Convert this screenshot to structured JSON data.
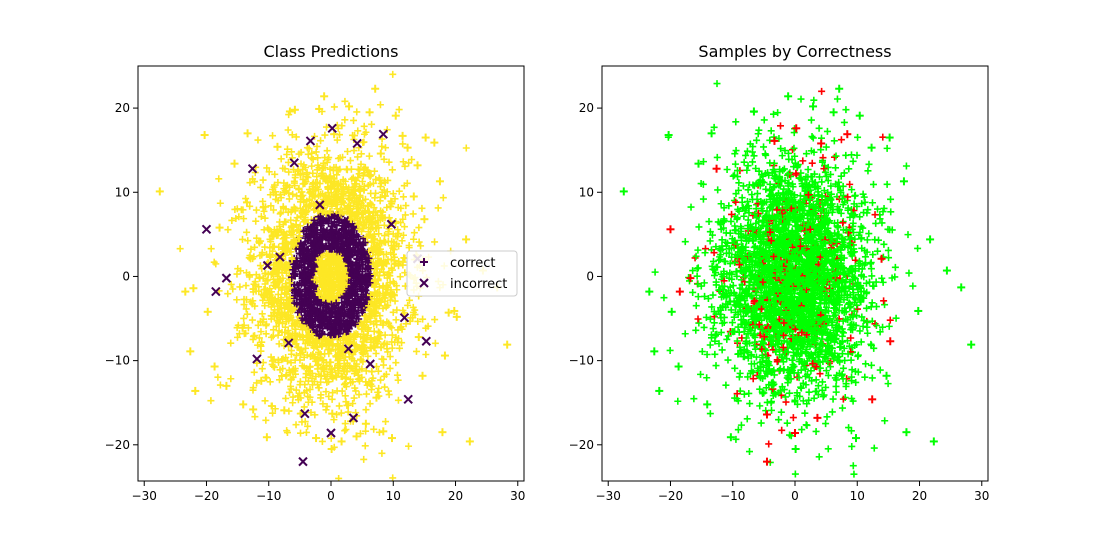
{
  "colors": {
    "yellow": "#fde725",
    "purple": "#440154",
    "green": "#00ff00",
    "red": "#ff0000",
    "frame": "#000000",
    "legend_border": "#cccccc"
  },
  "chart_data": [
    {
      "type": "scatter",
      "title": "Class Predictions",
      "xlabel": "",
      "ylabel": "",
      "xlim": [
        -31,
        31
      ],
      "ylim": [
        -24.3,
        25
      ],
      "xticks": [
        -30,
        -20,
        -10,
        0,
        10,
        20,
        30
      ],
      "yticks": [
        -20,
        -10,
        0,
        10,
        20
      ],
      "xtick_labels": [
        "−30",
        "−20",
        "−10",
        "0",
        "10",
        "20",
        "30"
      ],
      "ytick_labels": [
        "−20",
        "−10",
        "0",
        "10",
        "20"
      ],
      "grid": false,
      "legend": {
        "placement": "center-right",
        "entries": [
          {
            "label": "correct",
            "marker": "plus",
            "color": "#440154"
          },
          {
            "label": "incorrect",
            "marker": "x",
            "color": "#440154"
          }
        ]
      },
      "color_rule": "radius > 6.5 → #fde725 (yellow), otherwise #440154 (purple)",
      "series": [
        {
          "name": "correct",
          "marker": "plus",
          "points": [
            [
              -27.5,
              10.1
            ],
            [
              -20.3,
              16.8
            ],
            [
              -22.6,
              -8.9
            ],
            [
              -21.8,
              -13.6
            ],
            [
              -23.4,
              -1.8
            ],
            [
              -22.1,
              -1.4
            ],
            [
              -19.8,
              -4.2
            ],
            [
              -18.7,
              -10.7
            ],
            [
              -17.9,
              5.8
            ],
            [
              -16.8,
              -13.0
            ],
            [
              -15.5,
              13.4
            ],
            [
              -13.4,
              17.0
            ],
            [
              -14.1,
              -15.2
            ],
            [
              -12.5,
              -15.8
            ],
            [
              -11.2,
              -12.4
            ],
            [
              -10.3,
              -19.1
            ],
            [
              -6.6,
              19.6
            ],
            [
              -5.8,
              19.8
            ],
            [
              -4.9,
              12.2
            ],
            [
              -2.4,
              -19.2
            ],
            [
              -1.9,
              19.9
            ],
            [
              -1.1,
              21.4
            ],
            [
              0.1,
              -20.5
            ],
            [
              1.7,
              -19.6
            ],
            [
              2.9,
              20.2
            ],
            [
              4.1,
              -19.0
            ],
            [
              5.6,
              -17.5
            ],
            [
              6.2,
              19.5
            ],
            [
              7.1,
              22.3
            ],
            [
              8.4,
              -18.4
            ],
            [
              9.8,
              -19.2
            ],
            [
              10.4,
              19.1
            ],
            [
              11.5,
              16.7
            ],
            [
              12.3,
              15.3
            ],
            [
              13.9,
              13.2
            ],
            [
              14.7,
              -11.8
            ],
            [
              15.2,
              16.5
            ],
            [
              16.6,
              15.9
            ],
            [
              17.5,
              11.3
            ],
            [
              18.3,
              -9.4
            ],
            [
              17.9,
              -18.5
            ],
            [
              18.9,
              -4.3
            ],
            [
              19.8,
              -4.1
            ],
            [
              20.2,
              -4.8
            ],
            [
              21.7,
              4.4
            ],
            [
              22.3,
              -19.6
            ],
            [
              24.4,
              0.7
            ],
            [
              26.7,
              -1.3
            ],
            [
              28.3,
              -8.1
            ],
            [
              15.0,
              6.8
            ],
            [
              14.1,
              -7.2
            ],
            [
              13.3,
              9.5
            ],
            [
              -13.5,
              8.8
            ],
            [
              -14.2,
              -6.1
            ],
            [
              -8.6,
              15.4
            ],
            [
              -7.5,
              -15.9
            ],
            [
              8.0,
              14.6
            ],
            [
              7.3,
              -14.4
            ],
            [
              0.5,
              16.9
            ],
            [
              0.2,
              -16.3
            ]
          ]
        },
        {
          "name": "incorrect",
          "marker": "x",
          "points": [
            [
              -4.5,
              -22.0
            ],
            [
              -4.2,
              -16.3
            ],
            [
              3.6,
              -16.8
            ],
            [
              0.0,
              -18.6
            ],
            [
              -20.0,
              5.6
            ],
            [
              -18.5,
              -1.8
            ],
            [
              -16.8,
              -0.2
            ],
            [
              -12.6,
              12.8
            ],
            [
              -11.9,
              -9.8
            ],
            [
              -10.2,
              1.3
            ],
            [
              -6.8,
              -7.9
            ],
            [
              -5.9,
              13.5
            ],
            [
              -3.3,
              16.1
            ],
            [
              0.2,
              17.6
            ],
            [
              4.2,
              15.8
            ],
            [
              8.4,
              16.9
            ],
            [
              9.7,
              6.2
            ],
            [
              11.8,
              -4.9
            ],
            [
              12.4,
              -14.6
            ],
            [
              15.3,
              -7.7
            ],
            [
              13.9,
              2.1
            ],
            [
              6.3,
              -10.4
            ],
            [
              -1.8,
              8.5
            ],
            [
              2.8,
              -8.6
            ],
            [
              -8.2,
              2.3
            ]
          ]
        }
      ]
    },
    {
      "type": "scatter",
      "title": "Samples by Correctness",
      "xlabel": "",
      "ylabel": "",
      "xlim": [
        -31,
        31
      ],
      "ylim": [
        -24.3,
        25
      ],
      "xticks": [
        -30,
        -20,
        -10,
        0,
        10,
        20,
        30
      ],
      "yticks": [
        -20,
        -10,
        0,
        10,
        20
      ],
      "xtick_labels": [
        "−30",
        "−20",
        "−10",
        "0",
        "10",
        "20",
        "30"
      ],
      "ytick_labels": [
        "−20",
        "−10",
        "0",
        "10",
        "20"
      ],
      "grid": false,
      "series": [
        {
          "name": "",
          "marker": "plus",
          "color": "#00ff00",
          "points": [
            [
              -27.5,
              10.1
            ],
            [
              -20.3,
              16.8
            ],
            [
              -22.6,
              -8.9
            ],
            [
              -21.8,
              -13.6
            ],
            [
              -23.4,
              -1.8
            ],
            [
              -19.8,
              -4.2
            ],
            [
              -18.7,
              -10.7
            ],
            [
              -15.5,
              13.4
            ],
            [
              -13.4,
              17.0
            ],
            [
              -14.1,
              -15.2
            ],
            [
              -10.3,
              -19.1
            ],
            [
              -6.6,
              19.6
            ],
            [
              -1.1,
              21.4
            ],
            [
              0.1,
              -20.5
            ],
            [
              2.9,
              20.2
            ],
            [
              6.2,
              19.5
            ],
            [
              7.1,
              22.3
            ],
            [
              9.8,
              -19.2
            ],
            [
              10.4,
              19.1
            ],
            [
              12.3,
              15.3
            ],
            [
              14.7,
              -11.8
            ],
            [
              15.2,
              16.5
            ],
            [
              17.5,
              11.3
            ],
            [
              17.9,
              -18.5
            ],
            [
              19.8,
              -4.1
            ],
            [
              21.7,
              4.4
            ],
            [
              22.3,
              -19.6
            ],
            [
              24.4,
              0.7
            ],
            [
              26.7,
              -1.3
            ],
            [
              28.3,
              -8.1
            ]
          ]
        },
        {
          "name": "",
          "marker": "plus",
          "color": "#ff0000",
          "points": [
            [
              -4.5,
              -22.0
            ],
            [
              -4.5,
              -16.4
            ],
            [
              3.6,
              -16.8
            ],
            [
              0.0,
              -18.6
            ],
            [
              -20.0,
              5.6
            ],
            [
              -18.5,
              -1.8
            ],
            [
              -12.6,
              12.8
            ],
            [
              -3.3,
              16.1
            ],
            [
              0.2,
              17.6
            ],
            [
              4.2,
              15.8
            ],
            [
              8.4,
              16.9
            ],
            [
              12.4,
              -14.6
            ],
            [
              15.3,
              -7.7
            ],
            [
              13.9,
              2.1
            ],
            [
              -16.8,
              -0.2
            ]
          ]
        }
      ]
    }
  ]
}
